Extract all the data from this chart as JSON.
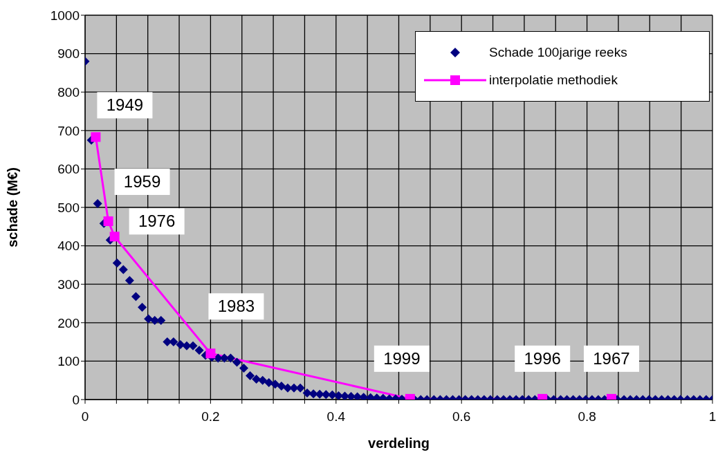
{
  "chart_data": {
    "type": "scatter",
    "xlabel": "verdeling",
    "ylabel": "schade (M€)",
    "xlim": [
      0,
      1
    ],
    "ylim": [
      0,
      1000
    ],
    "xticks": [
      0,
      {
        "value": 0.05,
        "label": null
      },
      {
        "value": 0.1,
        "label": null
      },
      {
        "value": 0.15,
        "label": null
      },
      0.2,
      {
        "value": 0.25,
        "label": null
      },
      {
        "value": 0.3,
        "label": null
      },
      {
        "value": 0.35,
        "label": null
      },
      0.4,
      {
        "value": 0.45,
        "label": null
      },
      {
        "value": 0.5,
        "label": null
      },
      {
        "value": 0.55,
        "label": null
      },
      0.6,
      {
        "value": 0.65,
        "label": null
      },
      {
        "value": 0.7,
        "label": null
      },
      {
        "value": 0.75,
        "label": null
      },
      0.8,
      {
        "value": 0.85,
        "label": null
      },
      {
        "value": 0.9,
        "label": null
      },
      {
        "value": 0.95,
        "label": null
      },
      1
    ],
    "yticks": [
      0,
      100,
      200,
      300,
      400,
      500,
      600,
      700,
      800,
      900,
      1000
    ],
    "grid": true,
    "legend": "top right",
    "series": [
      {
        "name": "Schade 100jarige reeks",
        "marker": "diamond",
        "color": "#000080",
        "x": [
          0,
          0.01,
          0.02,
          0.03,
          0.04,
          0.051,
          0.061,
          0.071,
          0.081,
          0.091,
          0.101,
          0.111,
          0.121,
          0.131,
          0.141,
          0.152,
          0.162,
          0.172,
          0.182,
          0.192,
          0.202,
          0.212,
          0.222,
          0.232,
          0.242,
          0.253,
          0.263,
          0.273,
          0.283,
          0.293,
          0.303,
          0.313,
          0.323,
          0.333,
          0.343,
          0.354,
          0.364,
          0.374,
          0.384,
          0.394,
          0.404,
          0.414,
          0.424,
          0.434,
          0.444,
          0.455,
          0.465,
          0.475,
          0.485,
          0.495,
          0.505,
          0.515,
          0.525,
          0.535,
          0.545,
          0.556,
          0.566,
          0.576,
          0.586,
          0.596,
          0.606,
          0.616,
          0.626,
          0.636,
          0.646,
          0.657,
          0.667,
          0.677,
          0.687,
          0.697,
          0.707,
          0.717,
          0.727,
          0.737,
          0.747,
          0.758,
          0.768,
          0.778,
          0.788,
          0.798,
          0.808,
          0.818,
          0.828,
          0.838,
          0.848,
          0.859,
          0.869,
          0.879,
          0.889,
          0.899,
          0.909,
          0.919,
          0.929,
          0.939,
          0.949,
          0.96,
          0.97,
          0.98,
          0.99,
          1
        ],
        "values": [
          880,
          675,
          510,
          458,
          415,
          355,
          338,
          310,
          268,
          240,
          210,
          206,
          206,
          150,
          150,
          143,
          140,
          140,
          128,
          115,
          110,
          108,
          108,
          108,
          97,
          82,
          62,
          53,
          50,
          44,
          40,
          35,
          30,
          30,
          30,
          17,
          15,
          14,
          13,
          12,
          10,
          9,
          8,
          7,
          6,
          5,
          4,
          3,
          2,
          2,
          1,
          null,
          0,
          0,
          0,
          0,
          0,
          0,
          0,
          0,
          0,
          0,
          0,
          0,
          0,
          0,
          0,
          0,
          0,
          0,
          0,
          0,
          null,
          0,
          0,
          0,
          0,
          0,
          0,
          0,
          0,
          0,
          0,
          null,
          0,
          0,
          0,
          0,
          0,
          0,
          0,
          0,
          0,
          0,
          0,
          0,
          0,
          0,
          0,
          0
        ]
      },
      {
        "name": "interpolatie methodiek",
        "type": "line",
        "marker": "square",
        "color": "#ff00ff",
        "x": [
          0.017,
          0.037,
          0.047,
          0.2,
          0.518,
          0.729,
          0.839
        ],
        "values": [
          683,
          464,
          424,
          120,
          2,
          2,
          2
        ]
      }
    ],
    "annotations": [
      {
        "text": "1949",
        "x": 0.017,
        "y": 683
      },
      {
        "text": "1959",
        "x": 0.037,
        "y": 464
      },
      {
        "text": "1976",
        "x": 0.047,
        "y": 424
      },
      {
        "text": "1983",
        "x": 0.2,
        "y": 120
      },
      {
        "text": "1999",
        "x": 0.518,
        "y": 2
      },
      {
        "text": "1996",
        "x": 0.729,
        "y": 2
      },
      {
        "text": "1967",
        "x": 0.839,
        "y": 2
      }
    ]
  }
}
